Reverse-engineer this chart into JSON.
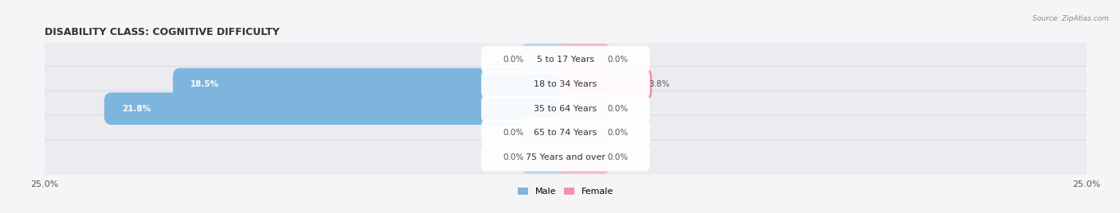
{
  "title": "DISABILITY CLASS: COGNITIVE DIFFICULTY",
  "source": "Source: ZipAtlas.com",
  "categories": [
    "5 to 17 Years",
    "18 to 34 Years",
    "35 to 64 Years",
    "65 to 74 Years",
    "75 Years and over"
  ],
  "male_values": [
    0.0,
    18.5,
    21.8,
    0.0,
    0.0
  ],
  "female_values": [
    0.0,
    3.8,
    0.0,
    0.0,
    0.0
  ],
  "male_color": "#7eb5dc",
  "female_color": "#f093a8",
  "male_color_light": "#b8d4eb",
  "female_color_light": "#f5b8c7",
  "row_bg_color": "#ebebf0",
  "row_border_color": "#d8d8e0",
  "max_val": 25.0,
  "title_fontsize": 9,
  "label_fontsize": 8,
  "value_fontsize": 7.5,
  "axis_label_fontsize": 8,
  "background_color": "#f5f5f8"
}
